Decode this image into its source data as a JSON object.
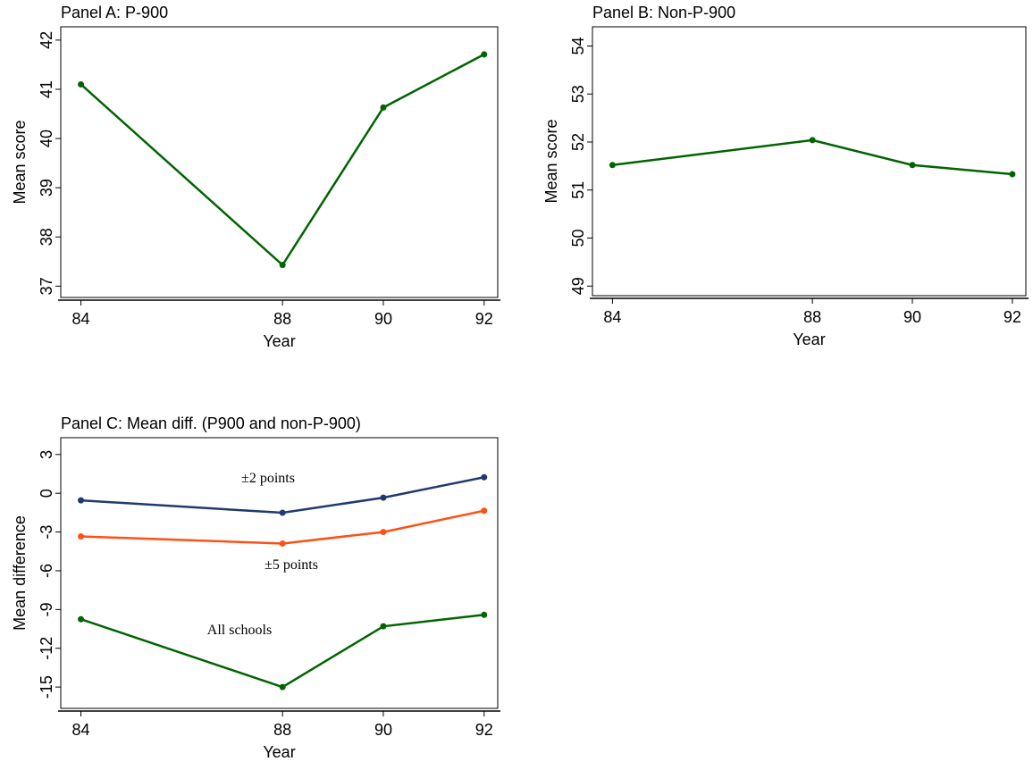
{
  "chart_data": [
    {
      "type": "line",
      "title": "Panel A: P-900",
      "x_label": "Year",
      "y_label": "Mean score",
      "x": [
        84,
        88,
        90,
        92
      ],
      "values": [
        41.1,
        37.43,
        40.63,
        41.71
      ],
      "color": "#006400",
      "xlim": [
        83.6,
        92.27
      ],
      "xticks": [
        84,
        88,
        90,
        92
      ],
      "ylim": [
        36.77,
        42.27
      ],
      "yticks": [
        37,
        38,
        39,
        40,
        41,
        42
      ]
    },
    {
      "type": "line",
      "title": "Panel B: Non-P-900",
      "x_label": "Year",
      "y_label": "Mean score",
      "x": [
        84,
        88,
        90,
        92
      ],
      "values": [
        51.52,
        52.04,
        51.52,
        51.33
      ],
      "color": "#006400",
      "xlim": [
        83.6,
        92.27
      ],
      "xticks": [
        84,
        88,
        90,
        92
      ],
      "ylim": [
        48.8,
        54.4
      ],
      "yticks": [
        49,
        50,
        51,
        52,
        53,
        54
      ]
    },
    {
      "type": "line",
      "title": "Panel C: Mean diff. (P900 and non-P-900)",
      "x_label": "Year",
      "y_label": "Mean difference",
      "x": [
        84,
        88,
        90,
        92
      ],
      "series": [
        {
          "name": "±2 points",
          "color": "#1f3a6e",
          "values": [
            -0.55,
            -1.51,
            -0.34,
            1.24
          ]
        },
        {
          "name": "±5 points",
          "color": "#ff4f14",
          "values": [
            -3.34,
            -3.89,
            -3.0,
            -1.35
          ]
        },
        {
          "name": "All schools",
          "color": "#006400",
          "values": [
            -9.75,
            -15,
            -10.3,
            -9.41
          ]
        }
      ],
      "xlim": [
        83.6,
        92.27
      ],
      "xticks": [
        84,
        88,
        90,
        92
      ],
      "ylim": [
        -16.65,
        4.3
      ],
      "yticks": [
        -15,
        -12,
        -9,
        -6,
        -3,
        0,
        3
      ]
    }
  ]
}
